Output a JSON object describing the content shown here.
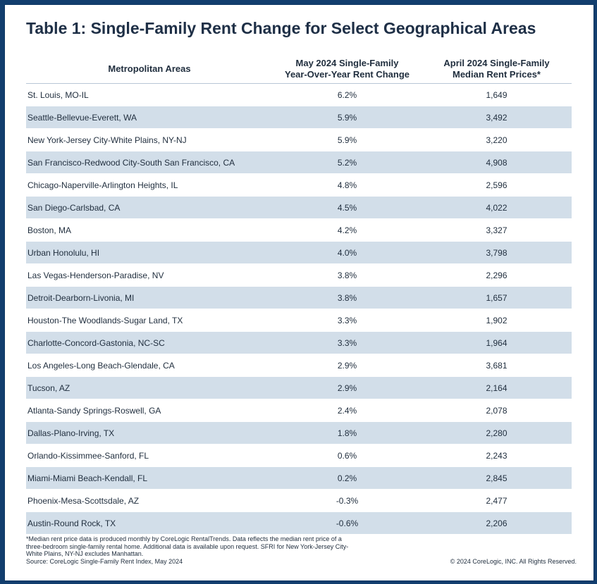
{
  "title": "Table 1: Single-Family Rent Change for Select Geographical Areas",
  "chart_data": {
    "type": "table",
    "columns": [
      [
        "Metropolitan Areas"
      ],
      [
        "May 2024 Single-Family",
        "Year-Over-Year Rent Change"
      ],
      [
        "April 2024 Single-Family",
        "Median Rent Prices*"
      ]
    ],
    "rows": [
      [
        "St. Louis, MO-IL",
        "6.2%",
        "1,649"
      ],
      [
        "Seattle-Bellevue-Everett, WA",
        "5.9%",
        "3,492"
      ],
      [
        "New York-Jersey City-White Plains, NY-NJ",
        "5.9%",
        "3,220"
      ],
      [
        "San Francisco-Redwood City-South San Francisco, CA",
        "5.2%",
        "4,908"
      ],
      [
        "Chicago-Naperville-Arlington Heights, IL",
        "4.8%",
        "2,596"
      ],
      [
        "San Diego-Carlsbad, CA",
        "4.5%",
        "4,022"
      ],
      [
        "Boston, MA",
        "4.2%",
        "3,327"
      ],
      [
        "Urban Honolulu, HI",
        "4.0%",
        "3,798"
      ],
      [
        "Las Vegas-Henderson-Paradise, NV",
        "3.8%",
        "2,296"
      ],
      [
        "Detroit-Dearborn-Livonia, MI",
        "3.8%",
        "1,657"
      ],
      [
        "Houston-The Woodlands-Sugar Land, TX",
        "3.3%",
        "1,902"
      ],
      [
        "Charlotte-Concord-Gastonia, NC-SC",
        "3.3%",
        "1,964"
      ],
      [
        "Los Angeles-Long Beach-Glendale, CA",
        "2.9%",
        "3,681"
      ],
      [
        "Tucson, AZ",
        "2.9%",
        "2,164"
      ],
      [
        "Atlanta-Sandy Springs-Roswell, GA",
        "2.4%",
        "2,078"
      ],
      [
        "Dallas-Plano-Irving, TX",
        "1.8%",
        "2,280"
      ],
      [
        "Orlando-Kissimmee-Sanford, FL",
        "0.6%",
        "2,243"
      ],
      [
        "Miami-Miami Beach-Kendall, FL",
        "0.2%",
        "2,845"
      ],
      [
        "Phoenix-Mesa-Scottsdale, AZ",
        "-0.3%",
        "2,477"
      ],
      [
        "Austin-Round Rock, TX",
        "-0.6%",
        "2,206"
      ]
    ]
  },
  "footnote": "*Median rent price data is produced monthly by CoreLogic RentalTrends. Data reflects the median rent price of a three-bedroom single-family rental home. Additional data is available upon request. SFRI for New York-Jersey City-White Plains, NY-NJ excludes Manhattan.",
  "source": "Source: CoreLogic Single-Family Rent Index, May 2024",
  "copyright": "© 2024 CoreLogic, INC. All Rights Reserved.",
  "colors": {
    "border": "#123e6e",
    "stripe": "#d2dee9",
    "title": "#1e2f46"
  }
}
